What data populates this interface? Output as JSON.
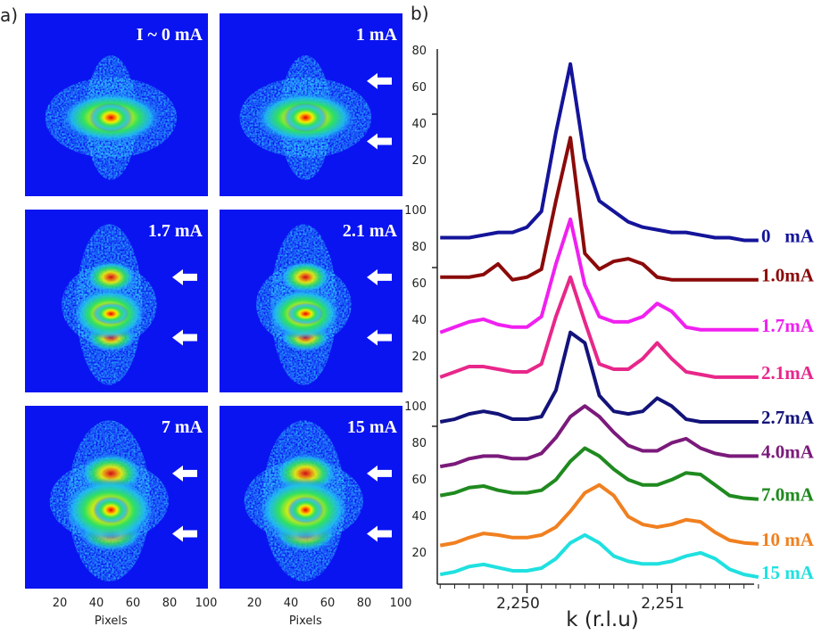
{
  "panel_labels": {
    "a": "a)",
    "b": "b)"
  },
  "images": [
    {
      "label": "I ~ 0 mA"
    },
    {
      "label": "1 mA"
    },
    {
      "label": "1.7 mA"
    },
    {
      "label": "2.1 mA"
    },
    {
      "label": "7 mA"
    },
    {
      "label": "15 mA"
    }
  ],
  "image_axes": {
    "xlabel": "Pixels",
    "xticks": [
      20,
      40,
      60,
      80,
      100
    ],
    "yticks": [
      [
        20,
        40,
        60,
        80
      ],
      [
        20,
        40,
        60,
        80,
        100
      ],
      [
        20,
        40,
        60,
        80,
        100
      ]
    ]
  },
  "chart_data": {
    "type": "line",
    "xlabel": "k (r.l.u)",
    "x": [
      2.2494,
      2.2495,
      2.2496,
      2.2497,
      2.2498,
      2.2499,
      2.25,
      2.2501,
      2.2502,
      2.2503,
      2.2504,
      2.2505,
      2.2506,
      2.2507,
      2.2508,
      2.2509,
      2.251,
      2.2511,
      2.2512,
      2.2513,
      2.2514,
      2.2515,
      2.2516
    ],
    "xlim": [
      2.24938,
      2.25157
    ],
    "ylim": [
      0,
      100
    ],
    "xticks": [
      {
        "value": 2.25,
        "label": "2,250"
      },
      {
        "value": 2.251,
        "label": "2,251"
      }
    ],
    "series": [
      {
        "name": "0   mA",
        "color": "#14149a",
        "values": [
          65,
          65,
          65,
          65.5,
          66,
          66,
          67,
          70,
          85,
          98,
          80,
          72,
          70,
          68,
          67,
          66.5,
          66,
          66,
          65.5,
          65,
          65,
          64.5,
          64.5
        ]
      },
      {
        "name": "1.0mA",
        "color": "#8b0a0a",
        "values": [
          57.5,
          57.5,
          57.5,
          58,
          60,
          57,
          57.5,
          59,
          72,
          84,
          62,
          59,
          60.5,
          61,
          60,
          57.5,
          57,
          57,
          57,
          57,
          57,
          57,
          57
        ]
      },
      {
        "name": "1.7mA",
        "color": "#f020f0",
        "values": [
          47,
          48,
          49,
          49.5,
          48.5,
          48,
          48,
          50,
          60,
          68.5,
          56,
          50,
          49,
          49,
          50,
          52.5,
          51,
          48,
          47.5,
          47.5,
          47.5,
          47.5,
          47.5
        ]
      },
      {
        "name": "2.1mA",
        "color": "#e8278a",
        "values": [
          38.5,
          39.5,
          40.5,
          40.5,
          40,
          39.5,
          39.5,
          41,
          50,
          57.5,
          49,
          41,
          40,
          40,
          42,
          45,
          42,
          39.5,
          39,
          38.5,
          38.5,
          38.5,
          38.5
        ]
      },
      {
        "name": "2.7mA",
        "color": "#13137a",
        "values": [
          30,
          30.5,
          31.5,
          32,
          31.5,
          30.5,
          30.5,
          31,
          36,
          47,
          45,
          35,
          32,
          31.5,
          32,
          34.5,
          33,
          30.5,
          30,
          30,
          30,
          30,
          30
        ]
      },
      {
        "name": "4.0mA",
        "color": "#7b1a7b",
        "values": [
          21.5,
          22,
          23,
          23.5,
          23.5,
          23,
          23,
          24,
          27,
          31,
          33,
          31,
          28,
          25.5,
          24.5,
          24.5,
          26,
          26.8,
          25,
          24,
          23.5,
          23.5,
          23.5
        ]
      },
      {
        "name": "7.0mA",
        "color": "#1f8a1f",
        "values": [
          16,
          16.5,
          17.5,
          17.8,
          17,
          16.5,
          16.5,
          17,
          19,
          22.5,
          25,
          23.5,
          21,
          19,
          18,
          18,
          19,
          20.3,
          20,
          18,
          16,
          15.5,
          15.3
        ]
      },
      {
        "name": "10 mA",
        "color": "#f08020",
        "values": [
          6.5,
          7,
          8,
          8.8,
          8.5,
          8,
          8,
          8.5,
          10,
          13,
          16.5,
          18,
          16,
          12,
          10.5,
          10,
          10.5,
          11.4,
          11,
          9,
          7.5,
          7,
          6.8
        ]
      },
      {
        "name": "15 mA",
        "color": "#20e0e0",
        "values": [
          1,
          1.5,
          2.5,
          2.9,
          2.3,
          1.7,
          1.7,
          2.2,
          4,
          7,
          8.5,
          7,
          4.5,
          3.5,
          3,
          3,
          3.5,
          4.5,
          5.1,
          4,
          2,
          1,
          0.5
        ]
      }
    ]
  }
}
